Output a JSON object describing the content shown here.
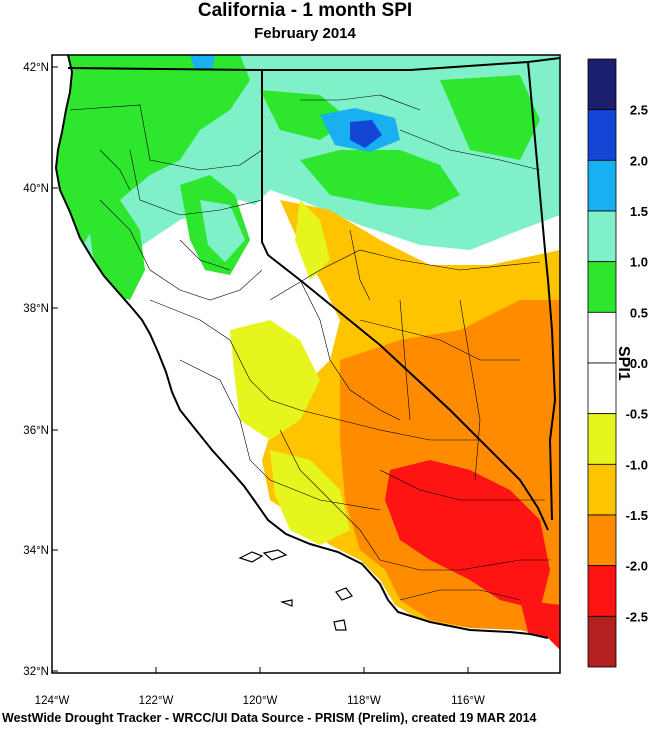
{
  "map": {
    "title": "California - 1 month SPI",
    "subtitle": "February 2014",
    "footer": "WestWide Drought Tracker - WRCC/UI  Data Source - PRISM (Prelim), created 19 MAR 2014",
    "lat_labels": [
      "42°N",
      "40°N",
      "38°N",
      "36°N",
      "34°N",
      "32°N"
    ],
    "lon_labels": [
      "124°W",
      "122°W",
      "120°W",
      "118°W",
      "116°W"
    ]
  },
  "colorbar": {
    "title": "SPI1",
    "labels": [
      "2.5",
      "2.0",
      "1.5",
      "1.0",
      "0.5",
      "0.0",
      "-0.5",
      "-1.0",
      "-1.5",
      "-2.0",
      "-2.5"
    ],
    "colors": [
      "#1b1f6e",
      "#1446d6",
      "#18b0f0",
      "#7ff0c8",
      "#2ee62e",
      "#ffffff",
      "#ffffff",
      "#e6f51e",
      "#ffc400",
      "#ff8c00",
      "#ff1414",
      "#b22020"
    ]
  },
  "legend_colors": {
    "ocean": "#ffffff",
    "very_wet": "#1446d6",
    "wet": "#7ff0c8",
    "moderately_wet": "#2ee62e",
    "near_normal": "#ffffff",
    "dry": "#e6f51e",
    "moderately_dry": "#ffc400",
    "very_dry": "#ff8c00",
    "extremely_dry": "#ff1414"
  }
}
